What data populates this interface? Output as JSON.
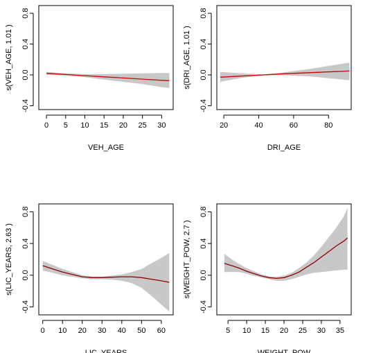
{
  "colors": {
    "band": "#c8c8c8",
    "fit": "#cc0000",
    "fit_dark": "#8b0000",
    "frame": "#000000"
  },
  "chart_data": [
    {
      "type": "line",
      "xlabel": "VEH_AGE",
      "ylabel": "s(VEH_AGE, 1.01 )",
      "xlim": [
        -2,
        33
      ],
      "ylim": [
        -0.45,
        0.9
      ],
      "xticks": [
        0,
        5,
        10,
        15,
        20,
        25,
        30
      ],
      "yticks": [
        -0.4,
        0.0,
        0.4,
        0.8
      ],
      "fit": {
        "x": [
          0,
          5,
          10,
          15,
          20,
          25,
          30,
          32
        ],
        "y": [
          0.02,
          0.005,
          -0.01,
          -0.025,
          -0.04,
          -0.055,
          -0.07,
          -0.075
        ]
      },
      "upper": {
        "x": [
          0,
          5,
          10,
          15,
          20,
          25,
          30,
          32
        ],
        "y": [
          0.04,
          0.02,
          0.01,
          0.01,
          0.015,
          0.02,
          0.025,
          0.025
        ]
      },
      "lower": {
        "x": [
          0,
          5,
          10,
          15,
          20,
          25,
          30,
          32
        ],
        "y": [
          0.0,
          -0.01,
          -0.03,
          -0.06,
          -0.09,
          -0.12,
          -0.16,
          -0.17
        ]
      }
    },
    {
      "type": "line",
      "xlabel": "DRI_AGE",
      "ylabel": "s(DRI_AGE, 1.01 )",
      "xlim": [
        16,
        93
      ],
      "ylim": [
        -0.45,
        0.9
      ],
      "xticks": [
        20,
        40,
        60,
        80
      ],
      "yticks": [
        -0.4,
        0.0,
        0.4,
        0.8
      ],
      "fit": {
        "x": [
          18,
          30,
          43,
          55,
          70,
          92
        ],
        "y": [
          -0.03,
          -0.015,
          0.0,
          0.015,
          0.03,
          0.05
        ]
      },
      "upper": {
        "x": [
          18,
          30,
          43,
          55,
          70,
          92
        ],
        "y": [
          0.04,
          0.02,
          0.005,
          0.035,
          0.08,
          0.16
        ]
      },
      "lower": {
        "x": [
          18,
          30,
          43,
          55,
          70,
          92
        ],
        "y": [
          -0.09,
          -0.04,
          -0.005,
          -0.005,
          -0.02,
          -0.07
        ]
      }
    },
    {
      "type": "line",
      "xlabel": "LIC_YEARS",
      "ylabel": "s(LIC_YEARS, 2.63 )",
      "xlim": [
        -2,
        66
      ],
      "ylim": [
        -0.5,
        0.9
      ],
      "xticks": [
        0,
        10,
        20,
        30,
        40,
        50,
        60
      ],
      "yticks": [
        -0.4,
        0.0,
        0.4,
        0.8
      ],
      "fit": {
        "x": [
          0,
          5,
          10,
          15,
          20,
          25,
          30,
          35,
          40,
          45,
          50,
          55,
          60,
          64
        ],
        "y": [
          0.12,
          0.08,
          0.04,
          0.01,
          -0.02,
          -0.03,
          -0.03,
          -0.025,
          -0.02,
          -0.02,
          -0.03,
          -0.05,
          -0.07,
          -0.09
        ]
      },
      "upper": {
        "x": [
          0,
          5,
          10,
          15,
          20,
          25,
          30,
          35,
          40,
          45,
          50,
          55,
          60,
          64
        ],
        "y": [
          0.18,
          0.13,
          0.08,
          0.04,
          0.0,
          -0.015,
          -0.015,
          -0.005,
          0.01,
          0.04,
          0.08,
          0.15,
          0.22,
          0.28
        ]
      },
      "lower": {
        "x": [
          0,
          5,
          10,
          15,
          20,
          25,
          30,
          35,
          40,
          45,
          50,
          55,
          60,
          64
        ],
        "y": [
          0.06,
          0.03,
          0.0,
          -0.02,
          -0.04,
          -0.05,
          -0.05,
          -0.055,
          -0.07,
          -0.1,
          -0.16,
          -0.26,
          -0.37,
          -0.46
        ]
      }
    },
    {
      "type": "line",
      "xlabel": "WEIGHT_POW",
      "ylabel": "s(WEIGHT_POW, 2.7 )",
      "xlim": [
        2,
        38
      ],
      "ylim": [
        -0.5,
        0.9
      ],
      "xticks": [
        5,
        10,
        15,
        20,
        25,
        30,
        35
      ],
      "yticks": [
        -0.4,
        0.0,
        0.4,
        0.8
      ],
      "fit": {
        "x": [
          4,
          6,
          8,
          10,
          12,
          14,
          16,
          18,
          20,
          22,
          24,
          26,
          28,
          30,
          32,
          34,
          36,
          37
        ],
        "y": [
          0.15,
          0.12,
          0.09,
          0.05,
          0.02,
          -0.01,
          -0.03,
          -0.04,
          -0.03,
          0.0,
          0.04,
          0.1,
          0.16,
          0.23,
          0.3,
          0.37,
          0.43,
          0.47
        ]
      },
      "upper": {
        "x": [
          4,
          6,
          8,
          10,
          12,
          14,
          16,
          18,
          20,
          22,
          24,
          26,
          28,
          30,
          32,
          34,
          36,
          37
        ],
        "y": [
          0.27,
          0.2,
          0.14,
          0.09,
          0.05,
          0.01,
          -0.015,
          -0.02,
          -0.005,
          0.03,
          0.09,
          0.16,
          0.25,
          0.36,
          0.48,
          0.6,
          0.74,
          0.85
        ]
      },
      "lower": {
        "x": [
          4,
          6,
          8,
          10,
          12,
          14,
          16,
          18,
          20,
          22,
          24,
          26,
          28,
          30,
          32,
          34,
          36,
          37
        ],
        "y": [
          0.04,
          0.04,
          0.04,
          0.02,
          -0.01,
          -0.03,
          -0.05,
          -0.07,
          -0.07,
          -0.05,
          -0.02,
          0.01,
          0.03,
          0.04,
          0.05,
          0.06,
          0.07,
          0.07
        ]
      }
    }
  ]
}
